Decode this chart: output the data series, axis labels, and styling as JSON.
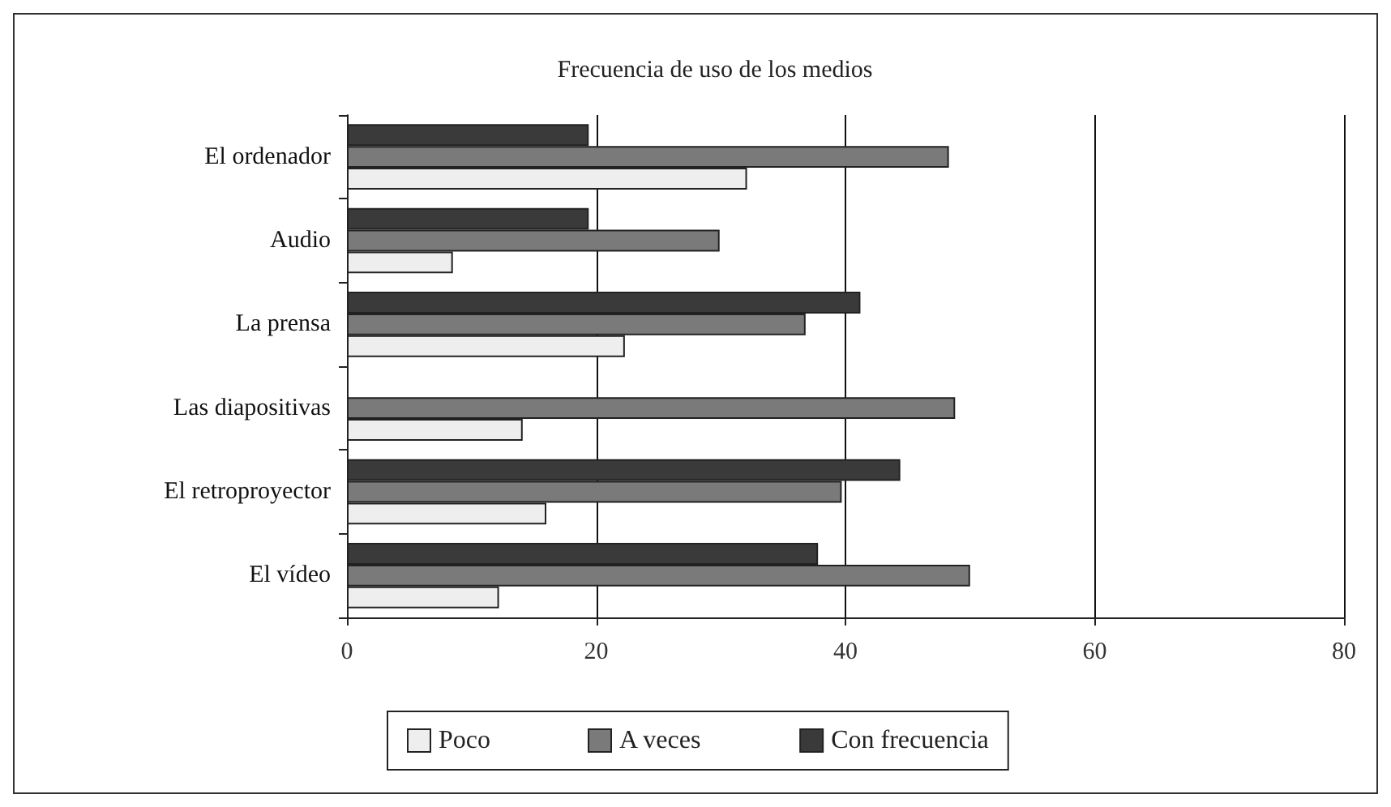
{
  "chart_data": {
    "type": "bar",
    "orientation": "horizontal",
    "title": "Frecuencia de uso de los medios",
    "categories": [
      "El ordenador",
      "Audio",
      "La prensa",
      "Las diapositivas",
      "El retroproyector",
      "El vídeo"
    ],
    "series": [
      {
        "name": "Poco",
        "color": "#eeeeee",
        "values": [
          32.1,
          8.5,
          22.3,
          14.1,
          16.0,
          12.2
        ]
      },
      {
        "name": "A veces",
        "color": "#7a7a7a",
        "values": [
          48.3,
          29.9,
          36.8,
          48.8,
          39.7,
          50.0
        ]
      },
      {
        "name": "Con frecuencia",
        "color": "#3a3a3a",
        "values": [
          19.4,
          19.4,
          41.2,
          null,
          44.4,
          37.8
        ]
      }
    ],
    "xlim": [
      0,
      80
    ],
    "xticks": [
      0,
      20,
      40,
      60,
      80
    ],
    "grid": "x",
    "legend": "bottom"
  }
}
